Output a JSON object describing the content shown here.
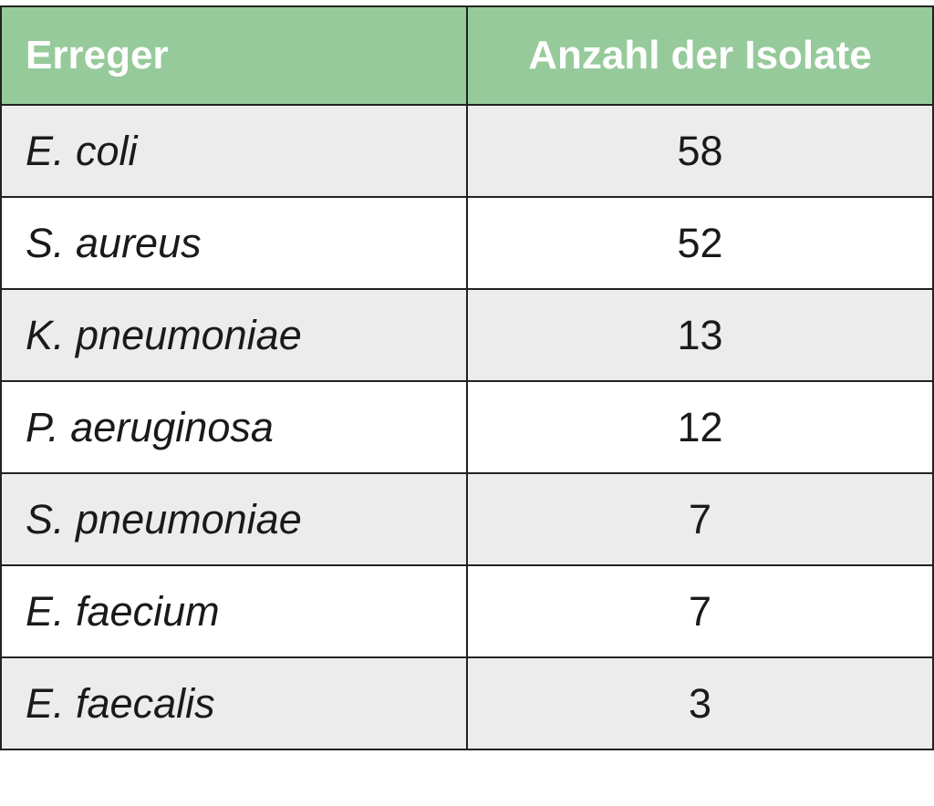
{
  "chart_data": {
    "type": "table",
    "columns": [
      "Erreger",
      "Anzahl der Isolate"
    ],
    "rows": [
      {
        "name": "E. coli",
        "value": 58
      },
      {
        "name": "S. aureus",
        "value": 52
      },
      {
        "name": "K. pneumoniae",
        "value": 13
      },
      {
        "name": "P. aeruginosa",
        "value": 12
      },
      {
        "name": "S. pneumoniae",
        "value": 7
      },
      {
        "name": "E. faecium",
        "value": 7
      },
      {
        "name": "E. faecalis",
        "value": 3
      }
    ],
    "colors": {
      "header_bg": "#96ca9b",
      "header_text": "#ffffff",
      "row_shade": "#ececec",
      "row_plain": "#ffffff",
      "border": "#222222"
    }
  }
}
